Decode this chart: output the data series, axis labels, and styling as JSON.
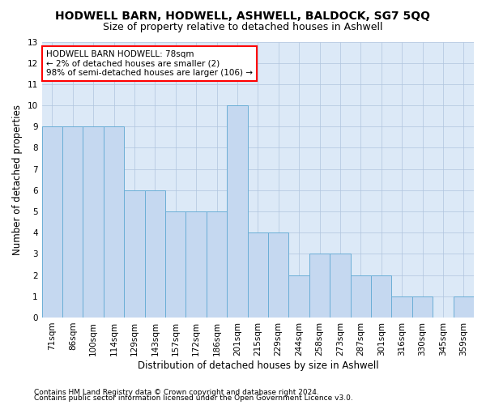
{
  "title": "HODWELL BARN, HODWELL, ASHWELL, BALDOCK, SG7 5QQ",
  "subtitle": "Size of property relative to detached houses in Ashwell",
  "xlabel": "Distribution of detached houses by size in Ashwell",
  "ylabel": "Number of detached properties",
  "categories": [
    "71sqm",
    "86sqm",
    "100sqm",
    "114sqm",
    "129sqm",
    "143sqm",
    "157sqm",
    "172sqm",
    "186sqm",
    "201sqm",
    "215sqm",
    "229sqm",
    "244sqm",
    "258sqm",
    "273sqm",
    "287sqm",
    "301sqm",
    "316sqm",
    "330sqm",
    "345sqm",
    "359sqm"
  ],
  "values": [
    9,
    9,
    9,
    9,
    6,
    6,
    5,
    5,
    5,
    10,
    4,
    4,
    2,
    3,
    3,
    2,
    2,
    1,
    1,
    0,
    1
  ],
  "bar_color": "#c5d8f0",
  "bar_edge_color": "#6baed6",
  "annotation_text": "HODWELL BARN HODWELL: 78sqm\n← 2% of detached houses are smaller (2)\n98% of semi-detached houses are larger (106) →",
  "annotation_box_color": "white",
  "annotation_box_edge_color": "red",
  "ylim": [
    0,
    13
  ],
  "yticks": [
    0,
    1,
    2,
    3,
    4,
    5,
    6,
    7,
    8,
    9,
    10,
    11,
    12,
    13
  ],
  "footer1": "Contains HM Land Registry data © Crown copyright and database right 2024.",
  "footer2": "Contains public sector information licensed under the Open Government Licence v3.0.",
  "background_color": "#dce9f7",
  "grid_color": "#b0c4de",
  "title_fontsize": 10,
  "subtitle_fontsize": 9,
  "xlabel_fontsize": 8.5,
  "ylabel_fontsize": 8.5,
  "tick_fontsize": 7.5,
  "annotation_fontsize": 7.5,
  "footer_fontsize": 6.5
}
